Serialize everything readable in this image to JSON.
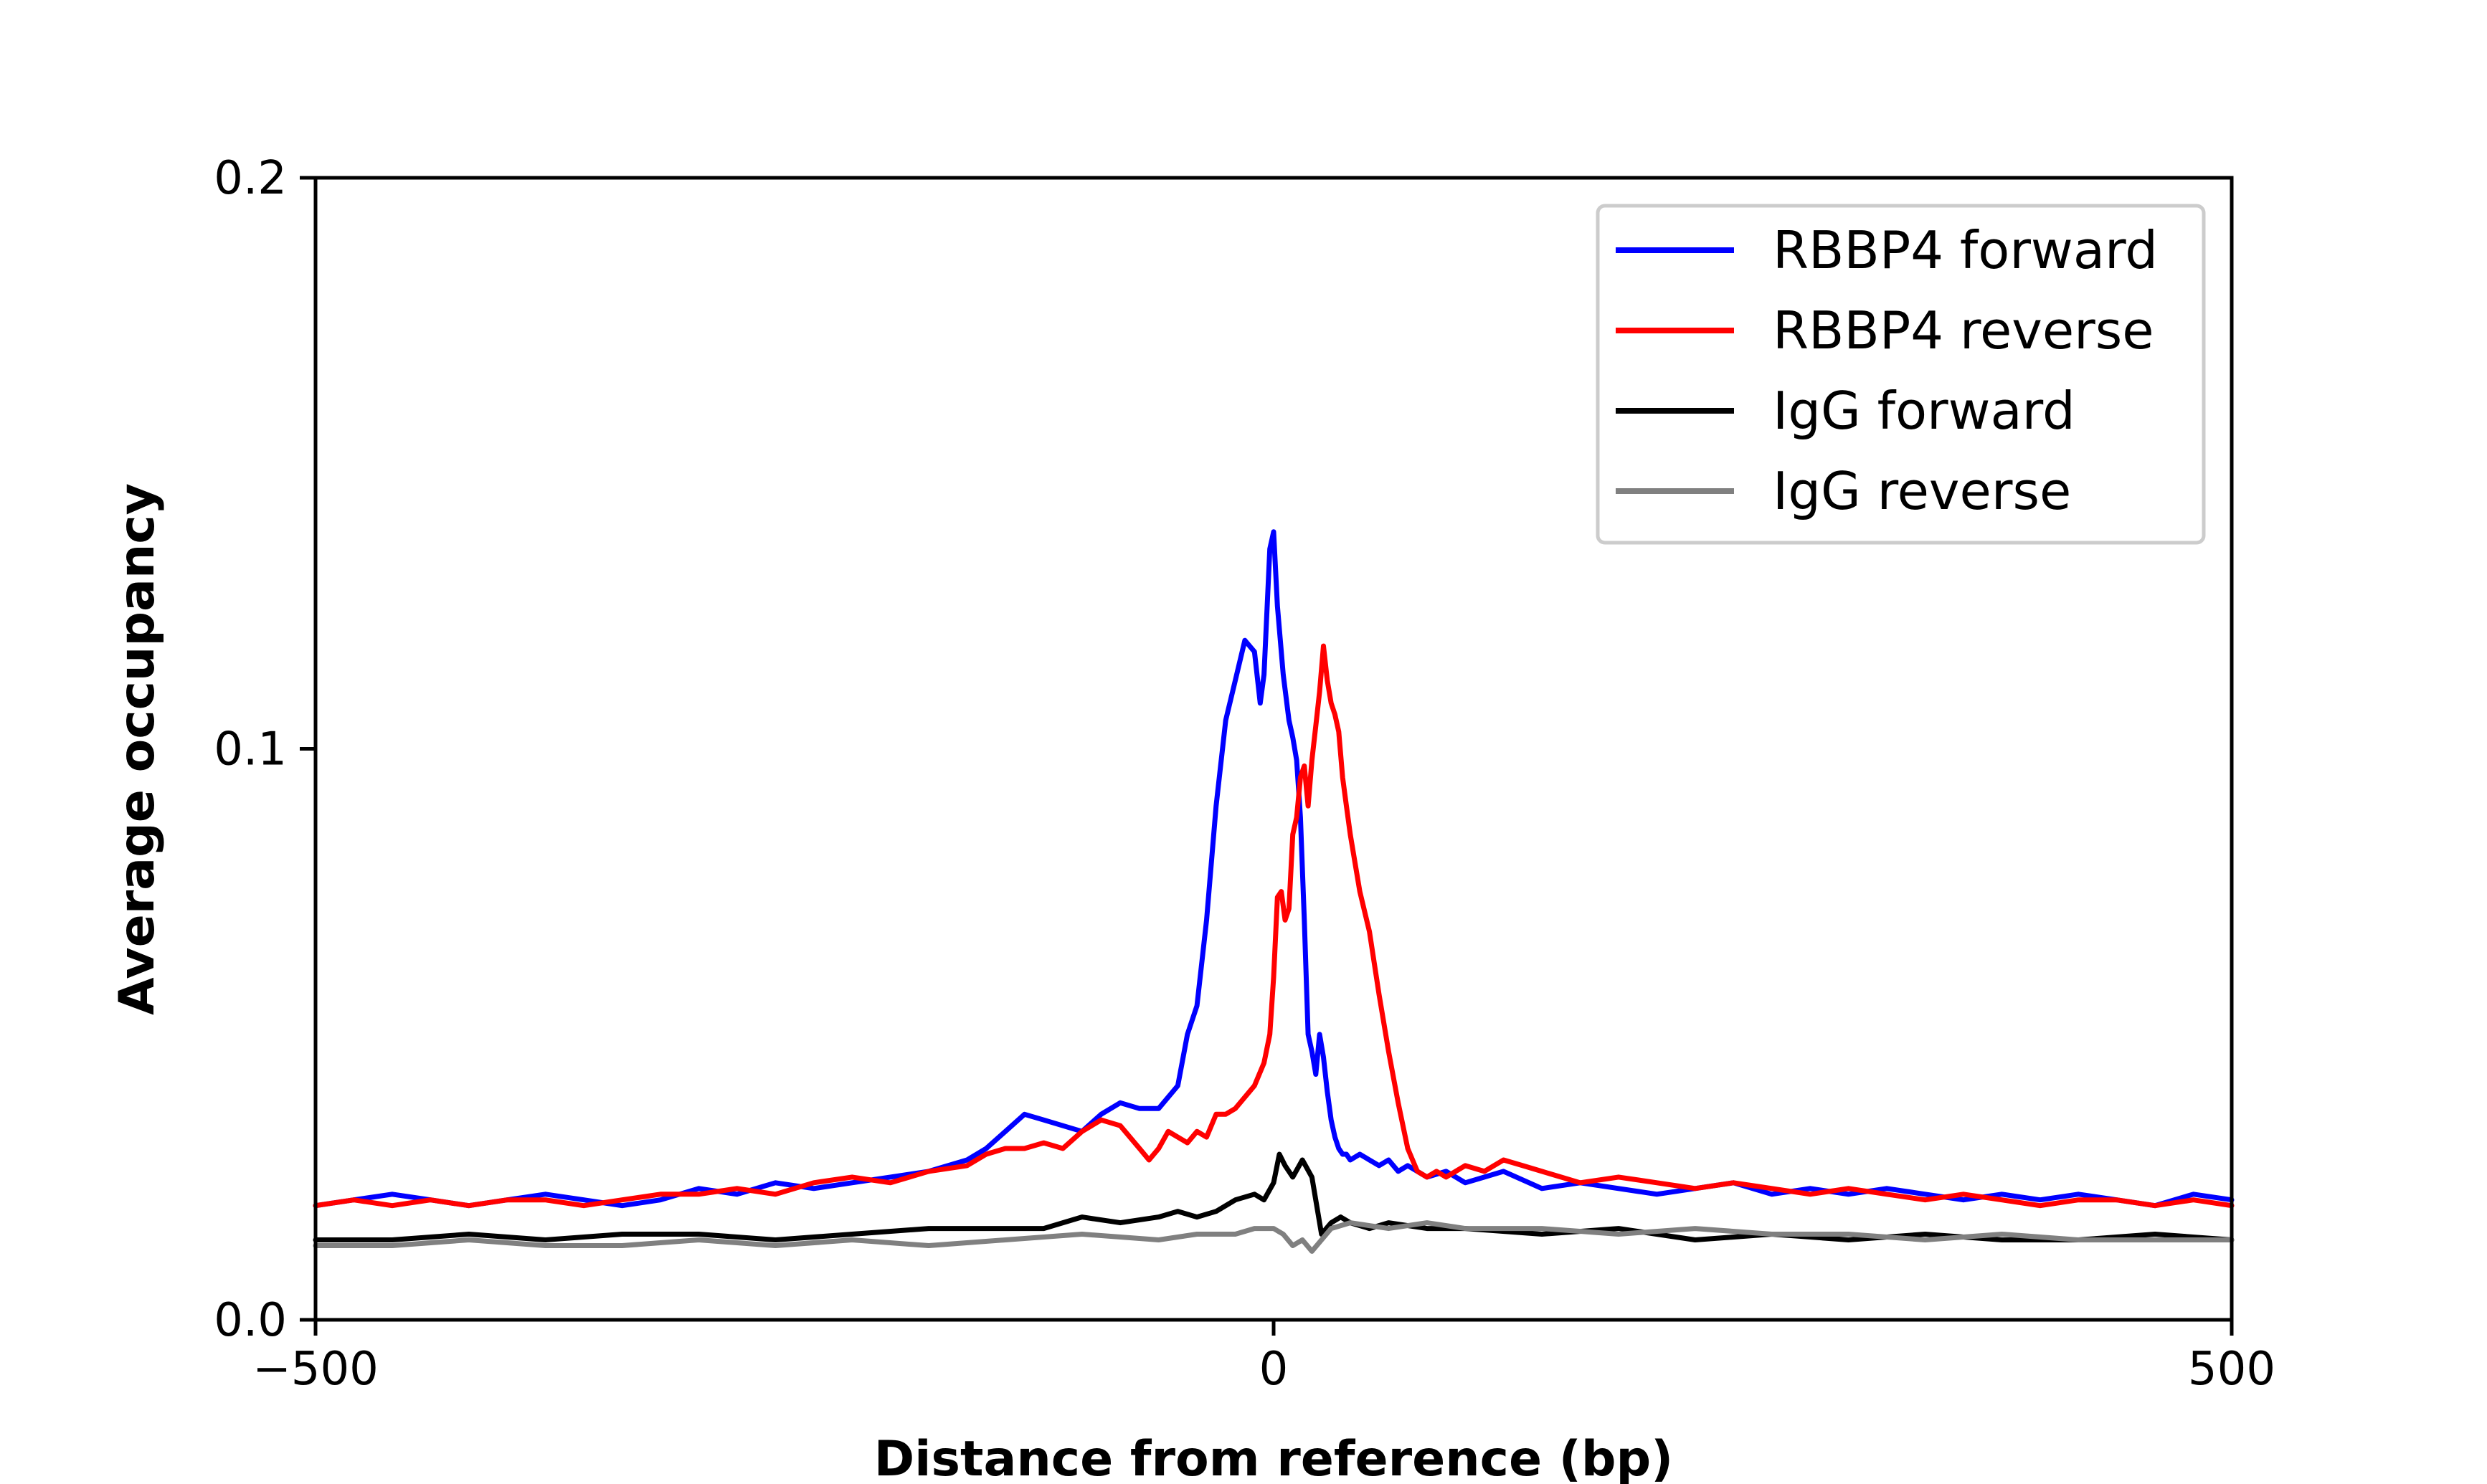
{
  "chart_data": {
    "type": "line",
    "title": "",
    "xlabel": "Distance from reference (bp)",
    "ylabel": "Average occupancy",
    "xlim": [
      -500,
      500
    ],
    "ylim": [
      0.0,
      0.2
    ],
    "xticks": [
      -500,
      0,
      500
    ],
    "xtick_labels": [
      "−500",
      "0",
      "500"
    ],
    "yticks": [
      0.0,
      0.1,
      0.2
    ],
    "ytick_labels": [
      "0.0",
      "0.1",
      "0.2"
    ],
    "grid": false,
    "legend_position": "top-right",
    "series": [
      {
        "name": "RBBP4 forward",
        "color": "#0000ff",
        "x": [
          -500,
          -480,
          -460,
          -440,
          -420,
          -400,
          -380,
          -360,
          -340,
          -320,
          -300,
          -280,
          -260,
          -240,
          -220,
          -200,
          -180,
          -160,
          -150,
          -140,
          -130,
          -120,
          -110,
          -100,
          -90,
          -80,
          -70,
          -60,
          -55,
          -50,
          -45,
          -40,
          -35,
          -30,
          -25,
          -20,
          -15,
          -10,
          -7,
          -5,
          -2,
          0,
          2,
          5,
          8,
          10,
          12,
          14,
          16,
          18,
          20,
          22,
          24,
          26,
          28,
          30,
          32,
          34,
          36,
          38,
          40,
          45,
          50,
          55,
          60,
          65,
          70,
          80,
          90,
          100,
          110,
          120,
          140,
          160,
          180,
          200,
          220,
          240,
          260,
          280,
          300,
          320,
          340,
          360,
          380,
          400,
          420,
          440,
          460,
          480,
          500
        ],
        "y": [
          0.02,
          0.021,
          0.022,
          0.021,
          0.02,
          0.021,
          0.022,
          0.021,
          0.02,
          0.021,
          0.023,
          0.022,
          0.024,
          0.023,
          0.024,
          0.025,
          0.026,
          0.028,
          0.03,
          0.033,
          0.036,
          0.035,
          0.034,
          0.033,
          0.036,
          0.038,
          0.037,
          0.037,
          0.039,
          0.041,
          0.05,
          0.055,
          0.07,
          0.09,
          0.105,
          0.112,
          0.119,
          0.117,
          0.108,
          0.113,
          0.135,
          0.138,
          0.125,
          0.113,
          0.105,
          0.102,
          0.098,
          0.088,
          0.07,
          0.05,
          0.047,
          0.043,
          0.05,
          0.046,
          0.04,
          0.035,
          0.032,
          0.03,
          0.029,
          0.029,
          0.028,
          0.029,
          0.028,
          0.027,
          0.028,
          0.026,
          0.027,
          0.025,
          0.026,
          0.024,
          0.025,
          0.026,
          0.023,
          0.024,
          0.023,
          0.022,
          0.023,
          0.024,
          0.022,
          0.023,
          0.022,
          0.023,
          0.022,
          0.021,
          0.022,
          0.021,
          0.022,
          0.021,
          0.02,
          0.022,
          0.021
        ]
      },
      {
        "name": "RBBP4 reverse",
        "color": "#ff0000",
        "x": [
          -500,
          -480,
          -460,
          -440,
          -420,
          -400,
          -380,
          -360,
          -340,
          -320,
          -300,
          -280,
          -260,
          -240,
          -220,
          -200,
          -180,
          -160,
          -150,
          -140,
          -130,
          -120,
          -110,
          -100,
          -90,
          -80,
          -75,
          -70,
          -65,
          -60,
          -55,
          -50,
          -45,
          -40,
          -35,
          -30,
          -25,
          -20,
          -15,
          -10,
          -5,
          -2,
          0,
          2,
          4,
          6,
          8,
          10,
          12,
          14,
          16,
          18,
          20,
          22,
          24,
          26,
          28,
          30,
          32,
          34,
          36,
          38,
          40,
          45,
          50,
          55,
          60,
          65,
          70,
          75,
          80,
          85,
          90,
          100,
          110,
          120,
          130,
          140,
          160,
          180,
          200,
          220,
          240,
          260,
          280,
          300,
          320,
          340,
          360,
          380,
          400,
          420,
          440,
          460,
          480,
          500
        ],
        "y": [
          0.02,
          0.021,
          0.02,
          0.021,
          0.02,
          0.021,
          0.021,
          0.02,
          0.021,
          0.022,
          0.022,
          0.023,
          0.022,
          0.024,
          0.025,
          0.024,
          0.026,
          0.027,
          0.029,
          0.03,
          0.03,
          0.031,
          0.03,
          0.033,
          0.035,
          0.034,
          0.032,
          0.03,
          0.028,
          0.03,
          0.033,
          0.032,
          0.031,
          0.033,
          0.032,
          0.036,
          0.036,
          0.037,
          0.039,
          0.041,
          0.045,
          0.05,
          0.06,
          0.074,
          0.075,
          0.07,
          0.072,
          0.085,
          0.088,
          0.095,
          0.097,
          0.09,
          0.098,
          0.104,
          0.11,
          0.118,
          0.112,
          0.108,
          0.106,
          0.103,
          0.095,
          0.09,
          0.085,
          0.075,
          0.068,
          0.057,
          0.047,
          0.038,
          0.03,
          0.026,
          0.025,
          0.026,
          0.025,
          0.027,
          0.026,
          0.028,
          0.027,
          0.026,
          0.024,
          0.025,
          0.024,
          0.023,
          0.024,
          0.023,
          0.022,
          0.023,
          0.022,
          0.021,
          0.022,
          0.021,
          0.02,
          0.021,
          0.021,
          0.02,
          0.021,
          0.02
        ]
      },
      {
        "name": "IgG forward",
        "color": "#000000",
        "x": [
          -500,
          -460,
          -420,
          -380,
          -340,
          -300,
          -260,
          -220,
          -180,
          -140,
          -120,
          -100,
          -80,
          -60,
          -50,
          -40,
          -30,
          -20,
          -10,
          -5,
          0,
          3,
          6,
          10,
          15,
          20,
          25,
          30,
          35,
          40,
          50,
          60,
          80,
          100,
          140,
          180,
          220,
          260,
          300,
          340,
          380,
          420,
          460,
          500
        ],
        "y": [
          0.014,
          0.014,
          0.015,
          0.014,
          0.015,
          0.015,
          0.014,
          0.015,
          0.016,
          0.016,
          0.016,
          0.018,
          0.017,
          0.018,
          0.019,
          0.018,
          0.019,
          0.021,
          0.022,
          0.021,
          0.024,
          0.029,
          0.027,
          0.025,
          0.028,
          0.025,
          0.015,
          0.017,
          0.018,
          0.017,
          0.016,
          0.017,
          0.016,
          0.016,
          0.015,
          0.016,
          0.014,
          0.015,
          0.014,
          0.015,
          0.014,
          0.014,
          0.015,
          0.014
        ]
      },
      {
        "name": "IgG reverse",
        "color": "#808080",
        "x": [
          -500,
          -460,
          -420,
          -380,
          -340,
          -300,
          -260,
          -220,
          -180,
          -140,
          -100,
          -60,
          -40,
          -20,
          -10,
          0,
          5,
          10,
          15,
          20,
          25,
          30,
          40,
          60,
          80,
          100,
          140,
          180,
          220,
          260,
          300,
          340,
          380,
          420,
          460,
          500
        ],
        "y": [
          0.013,
          0.013,
          0.014,
          0.013,
          0.013,
          0.014,
          0.013,
          0.014,
          0.013,
          0.014,
          0.015,
          0.014,
          0.015,
          0.015,
          0.016,
          0.016,
          0.015,
          0.013,
          0.014,
          0.012,
          0.014,
          0.016,
          0.017,
          0.016,
          0.017,
          0.016,
          0.016,
          0.015,
          0.016,
          0.015,
          0.015,
          0.014,
          0.015,
          0.014,
          0.014,
          0.014
        ]
      }
    ]
  }
}
